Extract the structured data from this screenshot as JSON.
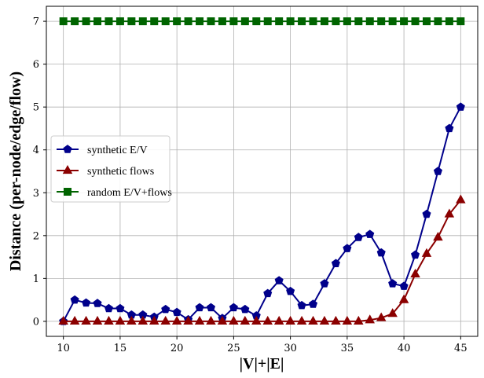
{
  "chart_data": {
    "type": "line",
    "xlabel": "|V|+|E|",
    "ylabel": "Distance (per-node/edge/flow)",
    "xlim": [
      8.5,
      46.5
    ],
    "ylim": [
      -0.35,
      7.35
    ],
    "xticks": [
      10,
      15,
      20,
      25,
      30,
      35,
      40,
      45
    ],
    "yticks": [
      0,
      1,
      2,
      3,
      4,
      5,
      6,
      7
    ],
    "grid": true,
    "legend_placement": "center-left",
    "series": [
      {
        "name": "synthetic E/V",
        "color": "#00008b",
        "marker": "pentagon",
        "x": [
          10,
          11,
          12,
          13,
          14,
          15,
          16,
          17,
          18,
          19,
          20,
          21,
          22,
          23,
          24,
          25,
          26,
          27,
          28,
          29,
          30,
          31,
          32,
          33,
          34,
          35,
          36,
          37,
          38,
          39,
          40,
          41,
          42,
          43,
          44,
          45
        ],
        "y": [
          0.0,
          0.5,
          0.43,
          0.42,
          0.3,
          0.3,
          0.15,
          0.15,
          0.1,
          0.28,
          0.21,
          0.04,
          0.32,
          0.32,
          0.07,
          0.32,
          0.28,
          0.13,
          0.65,
          0.95,
          0.7,
          0.37,
          0.4,
          0.88,
          1.35,
          1.7,
          1.96,
          2.03,
          1.6,
          0.88,
          0.82,
          1.55,
          2.5,
          3.5,
          4.5,
          5.0
        ]
      },
      {
        "name": "synthetic flows",
        "color": "#8b0000",
        "marker": "triangle",
        "x": [
          10,
          11,
          12,
          13,
          14,
          15,
          16,
          17,
          18,
          19,
          20,
          21,
          22,
          23,
          24,
          25,
          26,
          27,
          28,
          29,
          30,
          31,
          32,
          33,
          34,
          35,
          36,
          37,
          38,
          39,
          40,
          41,
          42,
          43,
          44,
          45
        ],
        "y": [
          0,
          0,
          0,
          0,
          0,
          0,
          0,
          0,
          0,
          0,
          0,
          0,
          0,
          0,
          0,
          0,
          0,
          0,
          0,
          0,
          0,
          0,
          0,
          0,
          0,
          0,
          0,
          0.03,
          0.08,
          0.18,
          0.5,
          1.1,
          1.58,
          1.96,
          2.5,
          2.83
        ]
      },
      {
        "name": "random E/V+flows",
        "color": "#006400",
        "marker": "square",
        "x": [
          10,
          11,
          12,
          13,
          14,
          15,
          16,
          17,
          18,
          19,
          20,
          21,
          22,
          23,
          24,
          25,
          26,
          27,
          28,
          29,
          30,
          31,
          32,
          33,
          34,
          35,
          36,
          37,
          38,
          39,
          40,
          41,
          42,
          43,
          44,
          45
        ],
        "y": [
          7,
          7,
          7,
          7,
          7,
          7,
          7,
          7,
          7,
          7,
          7,
          7,
          7,
          7,
          7,
          7,
          7,
          7,
          7,
          7,
          7,
          7,
          7,
          7,
          7,
          7,
          7,
          7,
          7,
          7,
          7,
          7,
          7,
          7,
          7,
          7
        ]
      }
    ]
  }
}
